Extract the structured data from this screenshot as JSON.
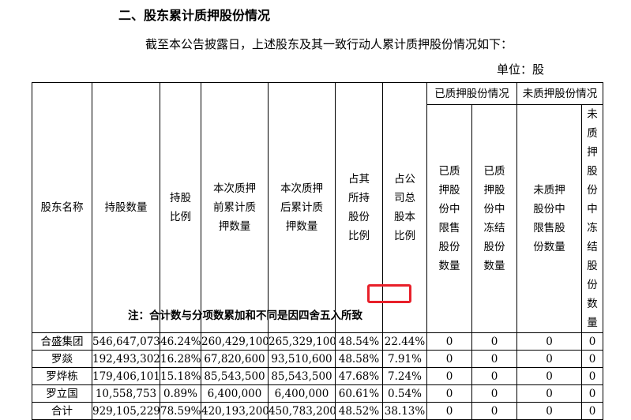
{
  "section_title": "二、股东累计质押股份情况",
  "intro_text": "截至本公告披露日，上述股东及其一致行动人累计质押股份情况如下：",
  "unit_text": "单位：股",
  "headers": {
    "shareholder": "股东名称",
    "holding": "持股数量",
    "holding_ratio": "持股\n比例",
    "before_pledge": "本次质押\n前累计质\n押数量",
    "after_pledge": "本次质押\n后累计质\n押数量",
    "pct_own": "占其\n所持\n股份\n比例",
    "pct_total": "占公\n司总\n股本\n比例",
    "pledged_group": "已质押股份情况",
    "unpledged_group": "未质押股份情况",
    "pledged_restricted": "已质\n押股\n份中\n限售\n股份\n数量",
    "pledged_frozen": "已质\n押股\n份中\n冻结\n股份\n数量",
    "unpledged_restricted": "未质押\n股份中\n限售股\n份数量",
    "unpledged_frozen": "未质\n押股\n份中\n冻结\n股份\n数量"
  },
  "rows": [
    [
      "合盛集团",
      "546,647,073",
      "46.24%",
      "260,429,100",
      "265,329,100",
      "48.54%",
      "22.44%",
      "0",
      "0",
      "0",
      "0"
    ],
    [
      "罗燚",
      "192,493,302",
      "16.28%",
      "67,820,600",
      "93,510,600",
      "48.58%",
      "7.91%",
      "0",
      "0",
      "0",
      "0"
    ],
    [
      "罗烨栋",
      "179,406,101",
      "15.18%",
      "85,543,500",
      "85,543,500",
      "47.68%",
      "7.24%",
      "0",
      "0",
      "0",
      "0"
    ],
    [
      "罗立国",
      "10,558,753",
      "0.89%",
      "6,400,000",
      "6,400,000",
      "60.61%",
      "0.54%",
      "0",
      "0",
      "0",
      "0"
    ],
    [
      "合计",
      "929,105,229",
      "78.59%",
      "420,193,200",
      "450,783,200",
      "48.52%",
      "38.13%",
      "0",
      "0",
      "0",
      "0"
    ]
  ],
  "note_text": "注：合计数与分项数累加和不同是因四舍五入所致",
  "highlight_color": "#e8202a"
}
